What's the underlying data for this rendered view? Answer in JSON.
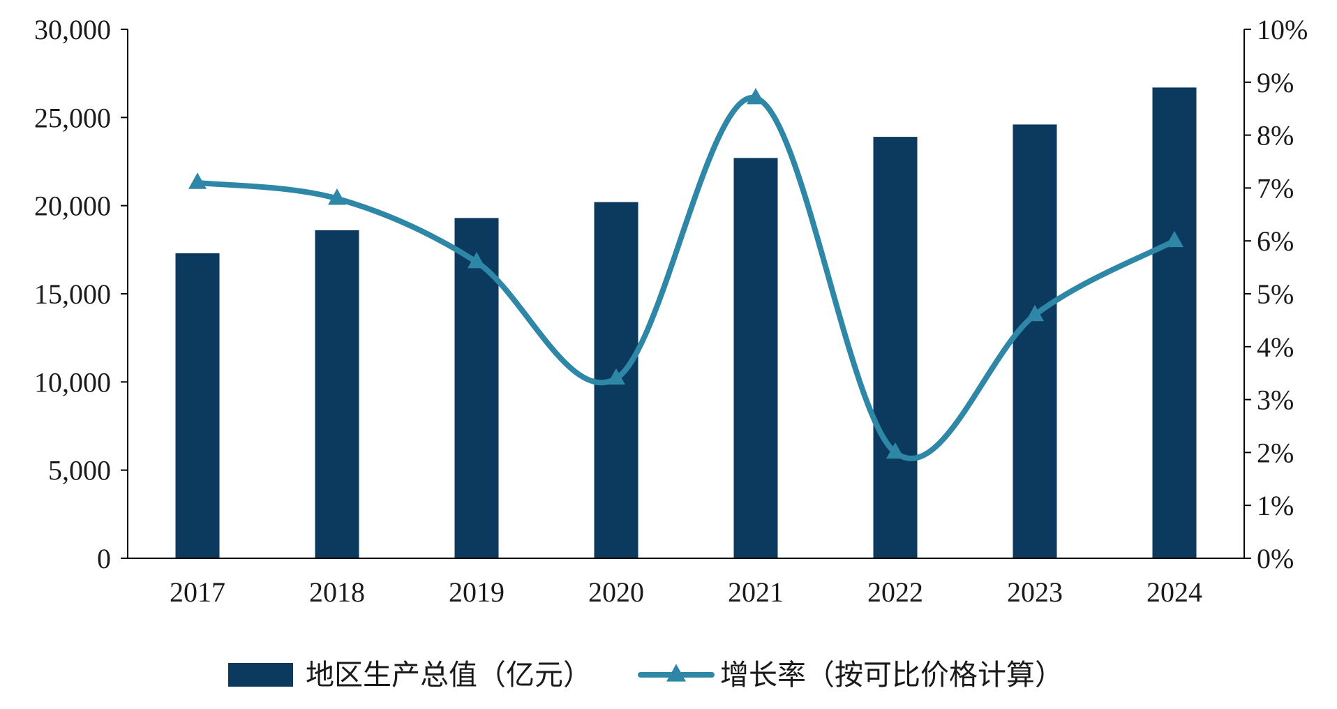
{
  "chart_data": {
    "type": "bar",
    "categories": [
      "2017",
      "2018",
      "2019",
      "2020",
      "2021",
      "2022",
      "2023",
      "2024"
    ],
    "series": [
      {
        "name": "地区生产总值（亿元）",
        "type": "bar",
        "axis": "left",
        "color": "#0b3a5e",
        "values": [
          17300,
          18600,
          19300,
          20200,
          22700,
          23900,
          24600,
          26700
        ]
      },
      {
        "name": "增长率（按可比价格计算）",
        "type": "line",
        "axis": "right",
        "color": "#2e87a6",
        "marker": "triangle",
        "smooth": true,
        "values": [
          7.1,
          6.8,
          5.6,
          3.4,
          8.7,
          2.0,
          4.6,
          6.0
        ]
      }
    ],
    "y_left": {
      "min": 0,
      "max": 30000,
      "ticks": [
        0,
        5000,
        10000,
        15000,
        20000,
        25000,
        30000
      ],
      "tick_labels": [
        "0",
        "5,000",
        "10,000",
        "15,000",
        "20,000",
        "25,000",
        "30,000"
      ]
    },
    "y_right": {
      "min": 0,
      "max": 10,
      "ticks": [
        0,
        1,
        2,
        3,
        4,
        5,
        6,
        7,
        8,
        9,
        10
      ],
      "tick_labels": [
        "0%",
        "1%",
        "2%",
        "3%",
        "4%",
        "5%",
        "6%",
        "7%",
        "8%",
        "9%",
        "10%"
      ]
    },
    "title": "",
    "xlabel": "",
    "ylabel": "",
    "grid": false,
    "legend_position": "bottom-center"
  }
}
